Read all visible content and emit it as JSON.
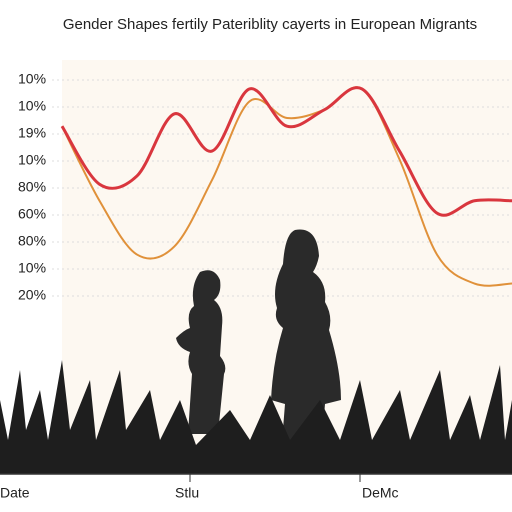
{
  "chart_data": {
    "type": "line",
    "title": "Gender Shapes fertily Pateriblity cayerts in European Migrants",
    "y_axis_labels": [
      "10%",
      "10%",
      "19%",
      "10%",
      "80%",
      "60%",
      "80%",
      "10%",
      "20%"
    ],
    "x_axis_labels": [
      "Date",
      "Stlu",
      "DeMc"
    ],
    "ylim": [
      0,
      100
    ],
    "series": [
      {
        "color": "#d9363e",
        "values": [
          84,
          70,
          72,
          87,
          78,
          93,
          84,
          88,
          93,
          78,
          63,
          66,
          66
        ]
      },
      {
        "color": "#e0913a",
        "values": [
          84,
          66,
          53,
          55,
          71,
          90,
          86,
          88,
          93,
          76,
          53,
          46,
          46
        ]
      }
    ]
  }
}
